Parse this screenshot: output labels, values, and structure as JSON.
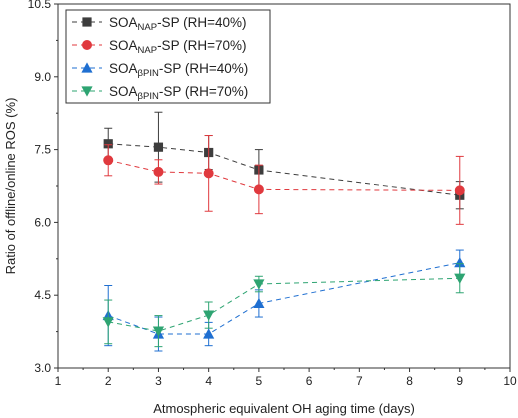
{
  "chart_data": {
    "type": "scatter",
    "xlabel": "Atmospheric equivalent OH aging time (days)",
    "ylabel": "Ratio of offline/online ROS (%)",
    "xlim": [
      1,
      10
    ],
    "ylim": [
      3.0,
      10.5
    ],
    "xticks": [
      1,
      2,
      3,
      4,
      5,
      6,
      7,
      8,
      9,
      10
    ],
    "yticks": [
      3.0,
      4.5,
      6.0,
      7.5,
      9.0,
      10.5
    ],
    "ytick_labels": [
      "3.0",
      "4.5",
      "6.0",
      "7.5",
      "9.0",
      "10.5"
    ],
    "grid": false,
    "legend_position": "top-left",
    "x": [
      2,
      3,
      4,
      5,
      9
    ],
    "series": [
      {
        "name": "SOA_NAP-SP (RH=40%)",
        "label_main": "SOA",
        "label_sub": "NAP",
        "label_rest": "-SP (RH=40%)",
        "marker": "square",
        "color": "#3d3d3d",
        "y": [
          7.62,
          7.55,
          7.44,
          7.08,
          6.56
        ],
        "err": [
          0.32,
          0.72,
          0.35,
          0.42,
          0.28
        ]
      },
      {
        "name": "SOA_NAP-SP (RH=70%)",
        "label_main": "SOA",
        "label_sub": "NAP",
        "label_rest": "-SP (RH=70%)",
        "marker": "circle",
        "color": "#e0393e",
        "y": [
          7.28,
          7.04,
          7.01,
          6.68,
          6.66
        ],
        "err": [
          0.32,
          0.25,
          0.78,
          0.5,
          0.7
        ]
      },
      {
        "name": "SOA_βPIN-SP (RH=40%)",
        "label_main": "SOA",
        "label_sub": "βPIN",
        "label_rest": "-SP (RH=40%)",
        "marker": "triangle-up",
        "color": "#1f6fd1",
        "y": [
          4.08,
          3.7,
          3.7,
          4.33,
          5.17
        ],
        "err": [
          0.62,
          0.35,
          0.24,
          0.28,
          0.26
        ]
      },
      {
        "name": "SOA_βPIN-SP (RH=70%)",
        "label_main": "SOA",
        "label_sub": "βPIN",
        "label_rest": "-SP (RH=70%)",
        "marker": "triangle-down",
        "color": "#2ea472",
        "y": [
          3.95,
          3.76,
          4.09,
          4.73,
          4.85
        ],
        "err": [
          0.45,
          0.32,
          0.27,
          0.16,
          0.3
        ]
      }
    ]
  }
}
